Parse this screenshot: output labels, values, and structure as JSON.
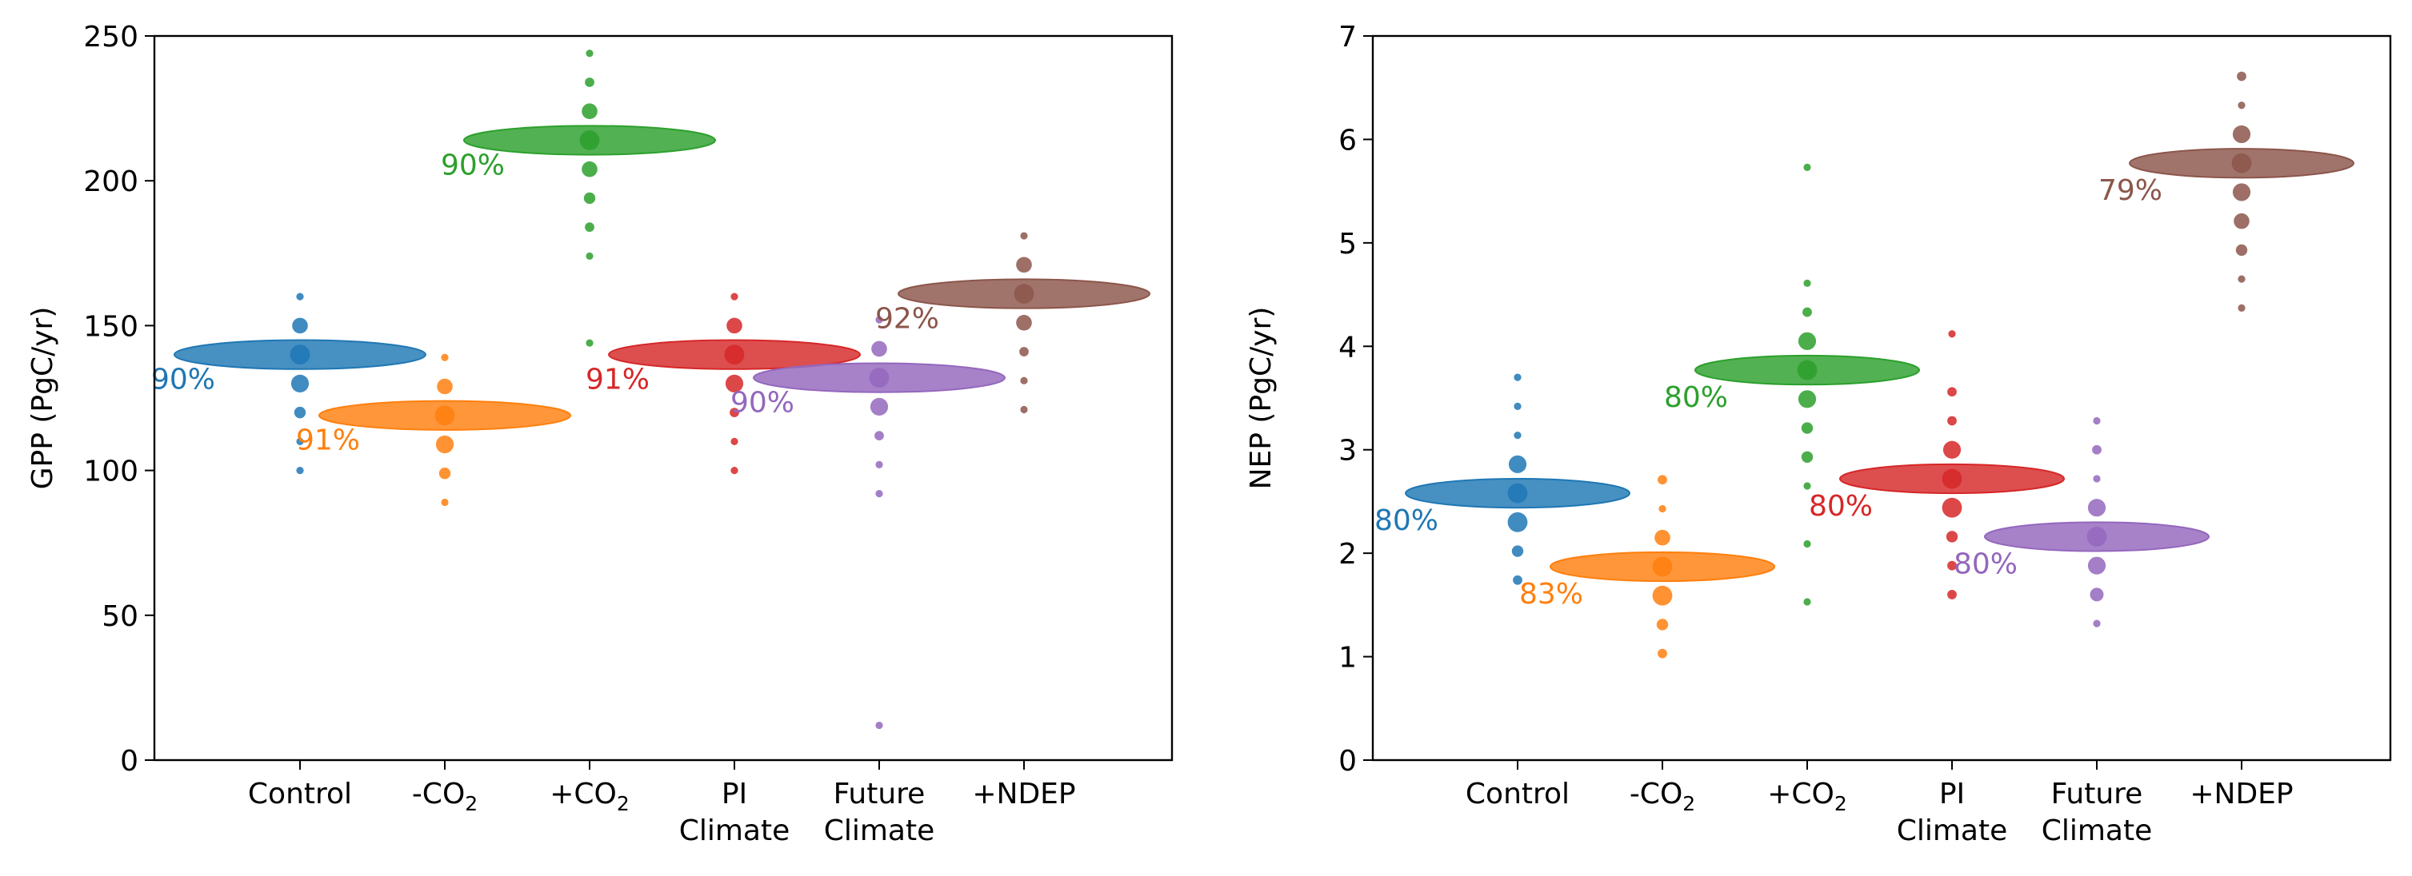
{
  "chart_data": [
    {
      "type": "scatter",
      "title": "",
      "xlabel": "",
      "ylabel": "GPP (PgC/yr)",
      "ylim": [
        0,
        250
      ],
      "yticks": [
        0,
        50,
        100,
        150,
        200,
        250
      ],
      "categories": [
        {
          "lines": [
            "Control"
          ]
        },
        {
          "lines": [
            "-CO",
            "2"
          ],
          "subscript": true
        },
        {
          "lines": [
            "+CO",
            "2"
          ],
          "subscript": true
        },
        {
          "lines": [
            "PI",
            "Climate"
          ]
        },
        {
          "lines": [
            "Future",
            "Climate"
          ]
        },
        {
          "lines": [
            "+NDEP"
          ]
        }
      ],
      "series": [
        {
          "category": "Control",
          "color": "#1f77b4",
          "center": 140,
          "ellipse_half_height": 5,
          "percent_label": "90%",
          "points": [
            {
              "y": 160,
              "s": 1
            },
            {
              "y": 150,
              "s": 3
            },
            {
              "y": 140,
              "s": 4
            },
            {
              "y": 130,
              "s": 3.5
            },
            {
              "y": 120,
              "s": 2
            },
            {
              "y": 110,
              "s": 1
            },
            {
              "y": 100,
              "s": 1
            }
          ]
        },
        {
          "category": "-CO2",
          "color": "#ff7f0e",
          "center": 119,
          "ellipse_half_height": 5,
          "percent_label": "91%",
          "points": [
            {
              "y": 139,
              "s": 1
            },
            {
              "y": 129,
              "s": 3
            },
            {
              "y": 119,
              "s": 4
            },
            {
              "y": 109,
              "s": 3.5
            },
            {
              "y": 99,
              "s": 2
            },
            {
              "y": 89,
              "s": 1
            }
          ]
        },
        {
          "category": "+CO2",
          "color": "#2ca02c",
          "center": 214,
          "ellipse_half_height": 5,
          "percent_label": "90%",
          "points": [
            {
              "y": 244,
              "s": 1
            },
            {
              "y": 234,
              "s": 1.5
            },
            {
              "y": 224,
              "s": 3
            },
            {
              "y": 214,
              "s": 4
            },
            {
              "y": 204,
              "s": 3
            },
            {
              "y": 194,
              "s": 2
            },
            {
              "y": 184,
              "s": 1.5
            },
            {
              "y": 174,
              "s": 1
            },
            {
              "y": 144,
              "s": 1
            }
          ]
        },
        {
          "category": "PI Climate",
          "color": "#d62728",
          "center": 140,
          "ellipse_half_height": 5,
          "percent_label": "91%",
          "points": [
            {
              "y": 160,
              "s": 1
            },
            {
              "y": 150,
              "s": 3
            },
            {
              "y": 140,
              "s": 4
            },
            {
              "y": 130,
              "s": 3.5
            },
            {
              "y": 120,
              "s": 1.5
            },
            {
              "y": 110,
              "s": 1
            },
            {
              "y": 100,
              "s": 1
            }
          ]
        },
        {
          "category": "Future Climate",
          "color": "#9467bd",
          "center": 132,
          "ellipse_half_height": 5,
          "percent_label": "90%",
          "points": [
            {
              "y": 152,
              "s": 1
            },
            {
              "y": 142,
              "s": 3
            },
            {
              "y": 132,
              "s": 4
            },
            {
              "y": 122,
              "s": 3.5
            },
            {
              "y": 112,
              "s": 1.5
            },
            {
              "y": 102,
              "s": 1
            },
            {
              "y": 92,
              "s": 1
            },
            {
              "y": 12,
              "s": 1
            }
          ]
        },
        {
          "category": "+NDEP",
          "color": "#8c564b",
          "center": 161,
          "ellipse_half_height": 5,
          "percent_label": "92%",
          "points": [
            {
              "y": 181,
              "s": 1
            },
            {
              "y": 171,
              "s": 3
            },
            {
              "y": 161,
              "s": 4
            },
            {
              "y": 151,
              "s": 3
            },
            {
              "y": 141,
              "s": 1.5
            },
            {
              "y": 131,
              "s": 1
            },
            {
              "y": 121,
              "s": 1
            }
          ]
        }
      ]
    },
    {
      "type": "scatter",
      "title": "",
      "xlabel": "",
      "ylabel": "NEP (PgC/yr)",
      "ylim": [
        0,
        7
      ],
      "yticks": [
        0,
        1,
        2,
        3,
        4,
        5,
        6,
        7
      ],
      "categories": [
        {
          "lines": [
            "Control"
          ]
        },
        {
          "lines": [
            "-CO",
            "2"
          ],
          "subscript": true
        },
        {
          "lines": [
            "+CO",
            "2"
          ],
          "subscript": true
        },
        {
          "lines": [
            "PI",
            "Climate"
          ]
        },
        {
          "lines": [
            "Future",
            "Climate"
          ]
        },
        {
          "lines": [
            "+NDEP"
          ]
        }
      ],
      "series": [
        {
          "category": "Control",
          "color": "#1f77b4",
          "center": 2.58,
          "ellipse_half_height": 0.14,
          "percent_label": "80%",
          "points": [
            {
              "y": 3.7,
              "s": 1
            },
            {
              "y": 3.42,
              "s": 1
            },
            {
              "y": 3.14,
              "s": 1
            },
            {
              "y": 2.86,
              "s": 3.5
            },
            {
              "y": 2.58,
              "s": 4
            },
            {
              "y": 2.3,
              "s": 4
            },
            {
              "y": 2.02,
              "s": 2
            },
            {
              "y": 1.74,
              "s": 1.5
            }
          ]
        },
        {
          "category": "-CO2",
          "color": "#ff7f0e",
          "center": 1.87,
          "ellipse_half_height": 0.14,
          "percent_label": "83%",
          "points": [
            {
              "y": 2.71,
              "s": 1.5
            },
            {
              "y": 2.43,
              "s": 1
            },
            {
              "y": 2.15,
              "s": 3
            },
            {
              "y": 1.87,
              "s": 4
            },
            {
              "y": 1.59,
              "s": 4
            },
            {
              "y": 1.31,
              "s": 2
            },
            {
              "y": 1.03,
              "s": 1.5
            }
          ]
        },
        {
          "category": "+CO2",
          "color": "#2ca02c",
          "center": 3.77,
          "ellipse_half_height": 0.14,
          "percent_label": "80%",
          "points": [
            {
              "y": 5.73,
              "s": 1
            },
            {
              "y": 4.61,
              "s": 1
            },
            {
              "y": 4.33,
              "s": 1.5
            },
            {
              "y": 4.05,
              "s": 3.5
            },
            {
              "y": 3.77,
              "s": 4
            },
            {
              "y": 3.49,
              "s": 3.5
            },
            {
              "y": 3.21,
              "s": 2
            },
            {
              "y": 2.93,
              "s": 2
            },
            {
              "y": 2.65,
              "s": 1
            },
            {
              "y": 2.09,
              "s": 1
            },
            {
              "y": 1.53,
              "s": 1
            }
          ]
        },
        {
          "category": "PI Climate",
          "color": "#d62728",
          "center": 2.72,
          "ellipse_half_height": 0.14,
          "percent_label": "80%",
          "points": [
            {
              "y": 4.12,
              "s": 1
            },
            {
              "y": 3.56,
              "s": 1.5
            },
            {
              "y": 3.28,
              "s": 1.5
            },
            {
              "y": 3.0,
              "s": 3.5
            },
            {
              "y": 2.72,
              "s": 4
            },
            {
              "y": 2.44,
              "s": 4
            },
            {
              "y": 2.16,
              "s": 2
            },
            {
              "y": 1.88,
              "s": 1.5
            },
            {
              "y": 1.6,
              "s": 1.5
            }
          ]
        },
        {
          "category": "Future Climate",
          "color": "#9467bd",
          "center": 2.16,
          "ellipse_half_height": 0.14,
          "percent_label": "80%",
          "points": [
            {
              "y": 3.28,
              "s": 1
            },
            {
              "y": 3.0,
              "s": 1.5
            },
            {
              "y": 2.72,
              "s": 1
            },
            {
              "y": 2.44,
              "s": 3.5
            },
            {
              "y": 2.16,
              "s": 4
            },
            {
              "y": 1.88,
              "s": 3.5
            },
            {
              "y": 1.6,
              "s": 2.5
            },
            {
              "y": 1.32,
              "s": 1
            }
          ]
        },
        {
          "category": "+NDEP",
          "color": "#8c564b",
          "center": 5.77,
          "ellipse_half_height": 0.14,
          "percent_label": "79%",
          "points": [
            {
              "y": 6.61,
              "s": 1.5
            },
            {
              "y": 6.33,
              "s": 1
            },
            {
              "y": 6.05,
              "s": 3.5
            },
            {
              "y": 5.77,
              "s": 4
            },
            {
              "y": 5.49,
              "s": 3.5
            },
            {
              "y": 5.21,
              "s": 3
            },
            {
              "y": 4.93,
              "s": 2
            },
            {
              "y": 4.65,
              "s": 1
            },
            {
              "y": 4.37,
              "s": 1
            }
          ]
        }
      ]
    }
  ]
}
